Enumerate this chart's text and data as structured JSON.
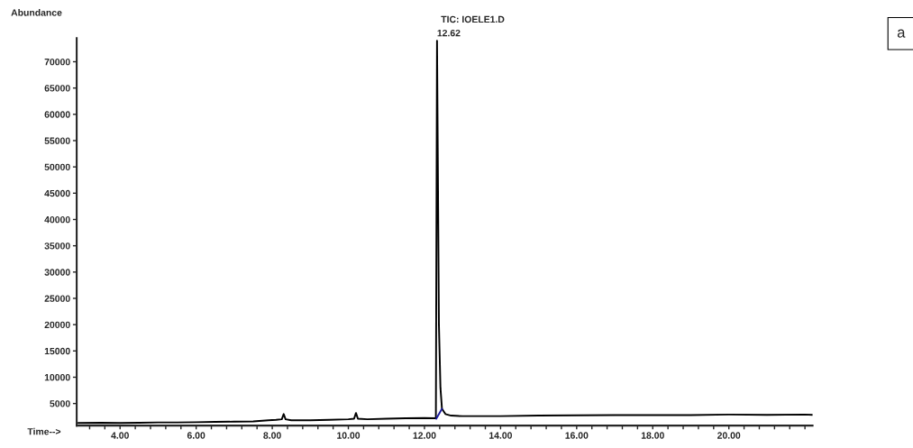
{
  "chart_data": {
    "type": "line",
    "title": "TIC: IOELE1.D",
    "xlabel": "Time-->",
    "ylabel": "Abundance",
    "series": [
      {
        "color": "#000000",
        "x": [
          2.9,
          3.5,
          4.0,
          4.5,
          5.0,
          5.5,
          6.0,
          6.5,
          7.0,
          7.5,
          7.9,
          8.1,
          8.25,
          8.3,
          8.35,
          8.5,
          9.0,
          9.5,
          10.0,
          10.15,
          10.2,
          10.25,
          10.5,
          11.0,
          11.5,
          12.0,
          12.3,
          12.33,
          12.38,
          12.42,
          12.46,
          12.55,
          12.7,
          13.0,
          14.0,
          15.0,
          16.0,
          17.0,
          18.0,
          19.0,
          20.0,
          21.0,
          22.0,
          22.2
        ],
        "values": [
          1300,
          1350,
          1300,
          1350,
          1400,
          1400,
          1450,
          1500,
          1550,
          1600,
          1800,
          1900,
          2000,
          3000,
          2000,
          1800,
          1800,
          1900,
          2000,
          2100,
          3200,
          2100,
          2000,
          2100,
          2200,
          2250,
          2200,
          74000,
          20000,
          8000,
          4000,
          3000,
          2700,
          2600,
          2600,
          2700,
          2750,
          2800,
          2800,
          2800,
          2900,
          2850,
          2900,
          2850
        ]
      },
      {
        "color": "#1a1aa0",
        "x": [
          12.31,
          12.46
        ],
        "values": [
          2100,
          4000
        ]
      }
    ],
    "annotations": [
      {
        "text": "12.62",
        "x": 12.33,
        "y": 74000
      },
      "a"
    ],
    "xlim": [
      2.86,
      22.2
    ],
    "ylim": [
      800,
      74500
    ],
    "xticks": [
      {
        "value": 3.2,
        "label": null
      },
      {
        "value": 3.6,
        "label": null
      },
      {
        "value": 4.0,
        "label": "4.00"
      },
      {
        "value": 4.4,
        "label": null
      },
      {
        "value": 4.8,
        "label": null
      },
      {
        "value": 5.2,
        "label": null
      },
      {
        "value": 5.6,
        "label": null
      },
      {
        "value": 6.0,
        "label": "6.00"
      },
      {
        "value": 6.4,
        "label": null
      },
      {
        "value": 6.8,
        "label": null
      },
      {
        "value": 7.2,
        "label": null
      },
      {
        "value": 7.6,
        "label": null
      },
      {
        "value": 8.0,
        "label": "8.00"
      },
      {
        "value": 8.4,
        "label": null
      },
      {
        "value": 8.8,
        "label": null
      },
      {
        "value": 9.2,
        "label": null
      },
      {
        "value": 9.6,
        "label": null
      },
      {
        "value": 10.0,
        "label": "10.00"
      },
      {
        "value": 10.4,
        "label": null
      },
      {
        "value": 10.8,
        "label": null
      },
      {
        "value": 11.2,
        "label": null
      },
      {
        "value": 11.6,
        "label": null
      },
      {
        "value": 12.0,
        "label": "12.00"
      },
      {
        "value": 12.4,
        "label": null
      },
      {
        "value": 12.8,
        "label": null
      },
      {
        "value": 13.2,
        "label": null
      },
      {
        "value": 13.6,
        "label": null
      },
      {
        "value": 14.0,
        "label": "14.00"
      },
      {
        "value": 14.4,
        "label": null
      },
      {
        "value": 14.8,
        "label": null
      },
      {
        "value": 15.2,
        "label": null
      },
      {
        "value": 15.6,
        "label": null
      },
      {
        "value": 16.0,
        "label": "16.00"
      },
      {
        "value": 16.4,
        "label": null
      },
      {
        "value": 16.8,
        "label": null
      },
      {
        "value": 17.2,
        "label": null
      },
      {
        "value": 17.6,
        "label": null
      },
      {
        "value": 18.0,
        "label": "18.00"
      },
      {
        "value": 18.4,
        "label": null
      },
      {
        "value": 18.8,
        "label": null
      },
      {
        "value": 19.2,
        "label": null
      },
      {
        "value": 19.6,
        "label": null
      },
      {
        "value": 20.0,
        "label": "20.00"
      },
      {
        "value": 20.4,
        "label": null
      },
      {
        "value": 20.8,
        "label": null
      },
      {
        "value": 21.2,
        "label": null
      },
      {
        "value": 21.6,
        "label": null
      },
      {
        "value": 22.0,
        "label": null
      }
    ],
    "yticks": [
      5000,
      10000,
      15000,
      20000,
      25000,
      30000,
      35000,
      40000,
      45000,
      50000,
      55000,
      60000,
      65000,
      70000
    ],
    "grid": false,
    "legend": false
  }
}
